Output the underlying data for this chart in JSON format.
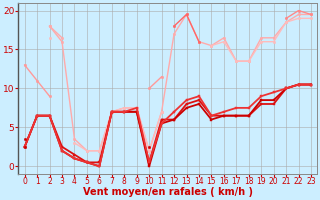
{
  "background_color": "#cceeff",
  "grid_color": "#aaaaaa",
  "xlabel": "Vent moyen/en rafales ( km/h )",
  "xlabel_color": "#cc0000",
  "xlabel_fontsize": 7,
  "ylabel_ticks": [
    0,
    5,
    10,
    15,
    20
  ],
  "xlim": [
    -0.5,
    23.5
  ],
  "ylim": [
    -1,
    21
  ],
  "x_hours": [
    0,
    1,
    2,
    3,
    4,
    5,
    6,
    7,
    8,
    9,
    10,
    11,
    12,
    13,
    14,
    15,
    16,
    17,
    18,
    19,
    20,
    21,
    22,
    23
  ],
  "series": [
    {
      "y": [
        null,
        null,
        18,
        16,
        3.5,
        2,
        2,
        7,
        7.5,
        7.5,
        2,
        7,
        17,
        19.5,
        16,
        15.5,
        16.5,
        13.5,
        13.5,
        16.5,
        16.5,
        18.5,
        19.5,
        19.5
      ],
      "color": "#ffaaaa",
      "lw": 1.0,
      "marker": "o",
      "ms": 1.8
    },
    {
      "y": [
        null,
        null,
        16.5,
        null,
        3,
        2,
        2,
        7,
        7.5,
        7.5,
        2,
        7,
        null,
        null,
        null,
        15.5,
        16,
        13.5,
        13.5,
        16,
        16,
        18.5,
        19,
        19
      ],
      "color": "#ffbbbb",
      "lw": 1.0,
      "marker": "o",
      "ms": 1.8
    },
    {
      "y": [
        13,
        11,
        9,
        null,
        null,
        null,
        null,
        null,
        null,
        null,
        null,
        null,
        null,
        null,
        null,
        null,
        null,
        null,
        null,
        null,
        null,
        null,
        null,
        null
      ],
      "color": "#ff9999",
      "lw": 1.0,
      "marker": "o",
      "ms": 1.8
    },
    {
      "y": [
        null,
        null,
        null,
        null,
        null,
        null,
        null,
        null,
        null,
        null,
        10,
        11.5,
        null,
        null,
        null,
        null,
        null,
        null,
        null,
        null,
        null,
        null,
        null,
        null
      ],
      "color": "#ff9999",
      "lw": 1.0,
      "marker": "o",
      "ms": 1.8
    },
    {
      "y": [
        null,
        null,
        18,
        16.5,
        null,
        null,
        null,
        null,
        null,
        null,
        null,
        null,
        null,
        null,
        null,
        null,
        null,
        null,
        null,
        null,
        null,
        null,
        null,
        null
      ],
      "color": "#ffaaaa",
      "lw": 1.0,
      "marker": "o",
      "ms": 1.8
    },
    {
      "y": [
        null,
        null,
        null,
        null,
        null,
        null,
        null,
        null,
        null,
        null,
        null,
        null,
        18,
        19.5,
        16,
        null,
        null,
        null,
        null,
        null,
        null,
        null,
        null,
        null
      ],
      "color": "#ff6666",
      "lw": 1.0,
      "marker": "o",
      "ms": 1.8
    },
    {
      "y": [
        null,
        null,
        null,
        null,
        null,
        null,
        null,
        null,
        null,
        null,
        null,
        null,
        null,
        null,
        null,
        null,
        null,
        null,
        null,
        null,
        null,
        19,
        20,
        19.5
      ],
      "color": "#ff8888",
      "lw": 1.0,
      "marker": "o",
      "ms": 1.8
    },
    {
      "y": [
        2.5,
        6.5,
        6.5,
        2.5,
        1.5,
        0.5,
        0.5,
        7,
        7,
        7,
        0.5,
        6,
        6,
        8,
        8.5,
        6.5,
        6.5,
        6.5,
        6.5,
        8,
        8,
        10,
        10.5,
        10.5
      ],
      "color": "#dd1111",
      "lw": 1.3,
      "marker": "s",
      "ms": 2.0
    },
    {
      "y": [
        2.5,
        6.5,
        6.5,
        2,
        1,
        0.5,
        0,
        7,
        7,
        7,
        0,
        5.5,
        6,
        7.5,
        8,
        6,
        6.5,
        6.5,
        6.5,
        8.5,
        8.5,
        10,
        10.5,
        10.5
      ],
      "color": "#cc0000",
      "lw": 1.3,
      "marker": "s",
      "ms": 2.0
    },
    {
      "y": [
        2.5,
        6.5,
        6.5,
        2,
        1,
        0.5,
        0,
        7,
        7,
        7.5,
        0.5,
        5.5,
        7,
        8.5,
        9,
        6.5,
        7,
        7.5,
        7.5,
        9,
        9.5,
        10,
        10.5,
        10.5
      ],
      "color": "#ee3333",
      "lw": 1.3,
      "marker": "s",
      "ms": 2.0
    },
    {
      "y": [
        2.5,
        null,
        null,
        null,
        null,
        null,
        null,
        null,
        null,
        null,
        2.5,
        null,
        null,
        null,
        null,
        null,
        null,
        null,
        null,
        null,
        null,
        null,
        null,
        null
      ],
      "color": "#cc0000",
      "lw": 1.0,
      "marker": "o",
      "ms": 1.8
    },
    {
      "y": [
        3.5,
        null,
        null,
        null,
        null,
        null,
        null,
        null,
        null,
        null,
        null,
        null,
        null,
        null,
        null,
        null,
        null,
        null,
        null,
        null,
        null,
        null,
        null,
        null
      ],
      "color": "#cc0000",
      "lw": 1.0,
      "marker": "o",
      "ms": 1.8
    }
  ],
  "tick_fontsize": 5.5,
  "ytick_fontsize": 6.5
}
